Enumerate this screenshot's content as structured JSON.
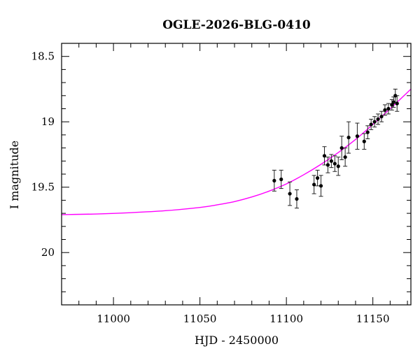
{
  "chart_data": {
    "type": "scatter",
    "title": "OGLE-2026-BLG-0410",
    "xlabel": "HJD - 2450000",
    "ylabel": "I magnitude",
    "xlim": [
      10970,
      11172
    ],
    "ylim": [
      20.4,
      18.4
    ],
    "y_inverted": true,
    "grid": false,
    "x_ticks": [
      11000,
      11050,
      11100,
      11150
    ],
    "x_tick_labels": [
      "11000",
      "11050",
      "11100",
      "11150"
    ],
    "y_ticks": [
      18.5,
      19,
      19.5,
      20
    ],
    "y_tick_labels": [
      "18.5",
      "19",
      "19.5",
      "20"
    ],
    "model_color": "#ff00ff",
    "point_color": "#000000",
    "model": {
      "x": [
        10970,
        10990,
        11010,
        11030,
        11050,
        11060,
        11070,
        11080,
        11090,
        11100,
        11110,
        11120,
        11130,
        11140,
        11150,
        11160,
        11172
      ],
      "y": [
        19.71,
        19.705,
        19.695,
        19.68,
        19.655,
        19.635,
        19.61,
        19.575,
        19.53,
        19.475,
        19.405,
        19.325,
        19.235,
        19.135,
        19.02,
        18.9,
        18.75
      ]
    },
    "series": [
      {
        "x": [
          11093,
          11097,
          11102,
          11106,
          11116,
          11118,
          11120,
          11122,
          11124,
          11126,
          11128,
          11130,
          11132,
          11134,
          11136,
          11141,
          11145,
          11147,
          11149,
          11151,
          11153,
          11155,
          11157,
          11159,
          11161,
          11162,
          11163,
          11164
        ],
        "y": [
          19.45,
          19.44,
          19.55,
          19.59,
          19.48,
          19.43,
          19.49,
          19.26,
          19.33,
          19.3,
          19.32,
          19.34,
          19.2,
          19.27,
          19.12,
          19.11,
          19.15,
          19.08,
          19.02,
          19.0,
          18.98,
          18.96,
          18.91,
          18.9,
          18.87,
          18.85,
          18.8,
          18.86
        ],
        "err": [
          0.08,
          0.07,
          0.09,
          0.07,
          0.07,
          0.06,
          0.08,
          0.07,
          0.06,
          0.05,
          0.06,
          0.07,
          0.09,
          0.07,
          0.12,
          0.1,
          0.06,
          0.05,
          0.04,
          0.04,
          0.04,
          0.04,
          0.04,
          0.04,
          0.04,
          0.04,
          0.05,
          0.06
        ]
      }
    ]
  }
}
